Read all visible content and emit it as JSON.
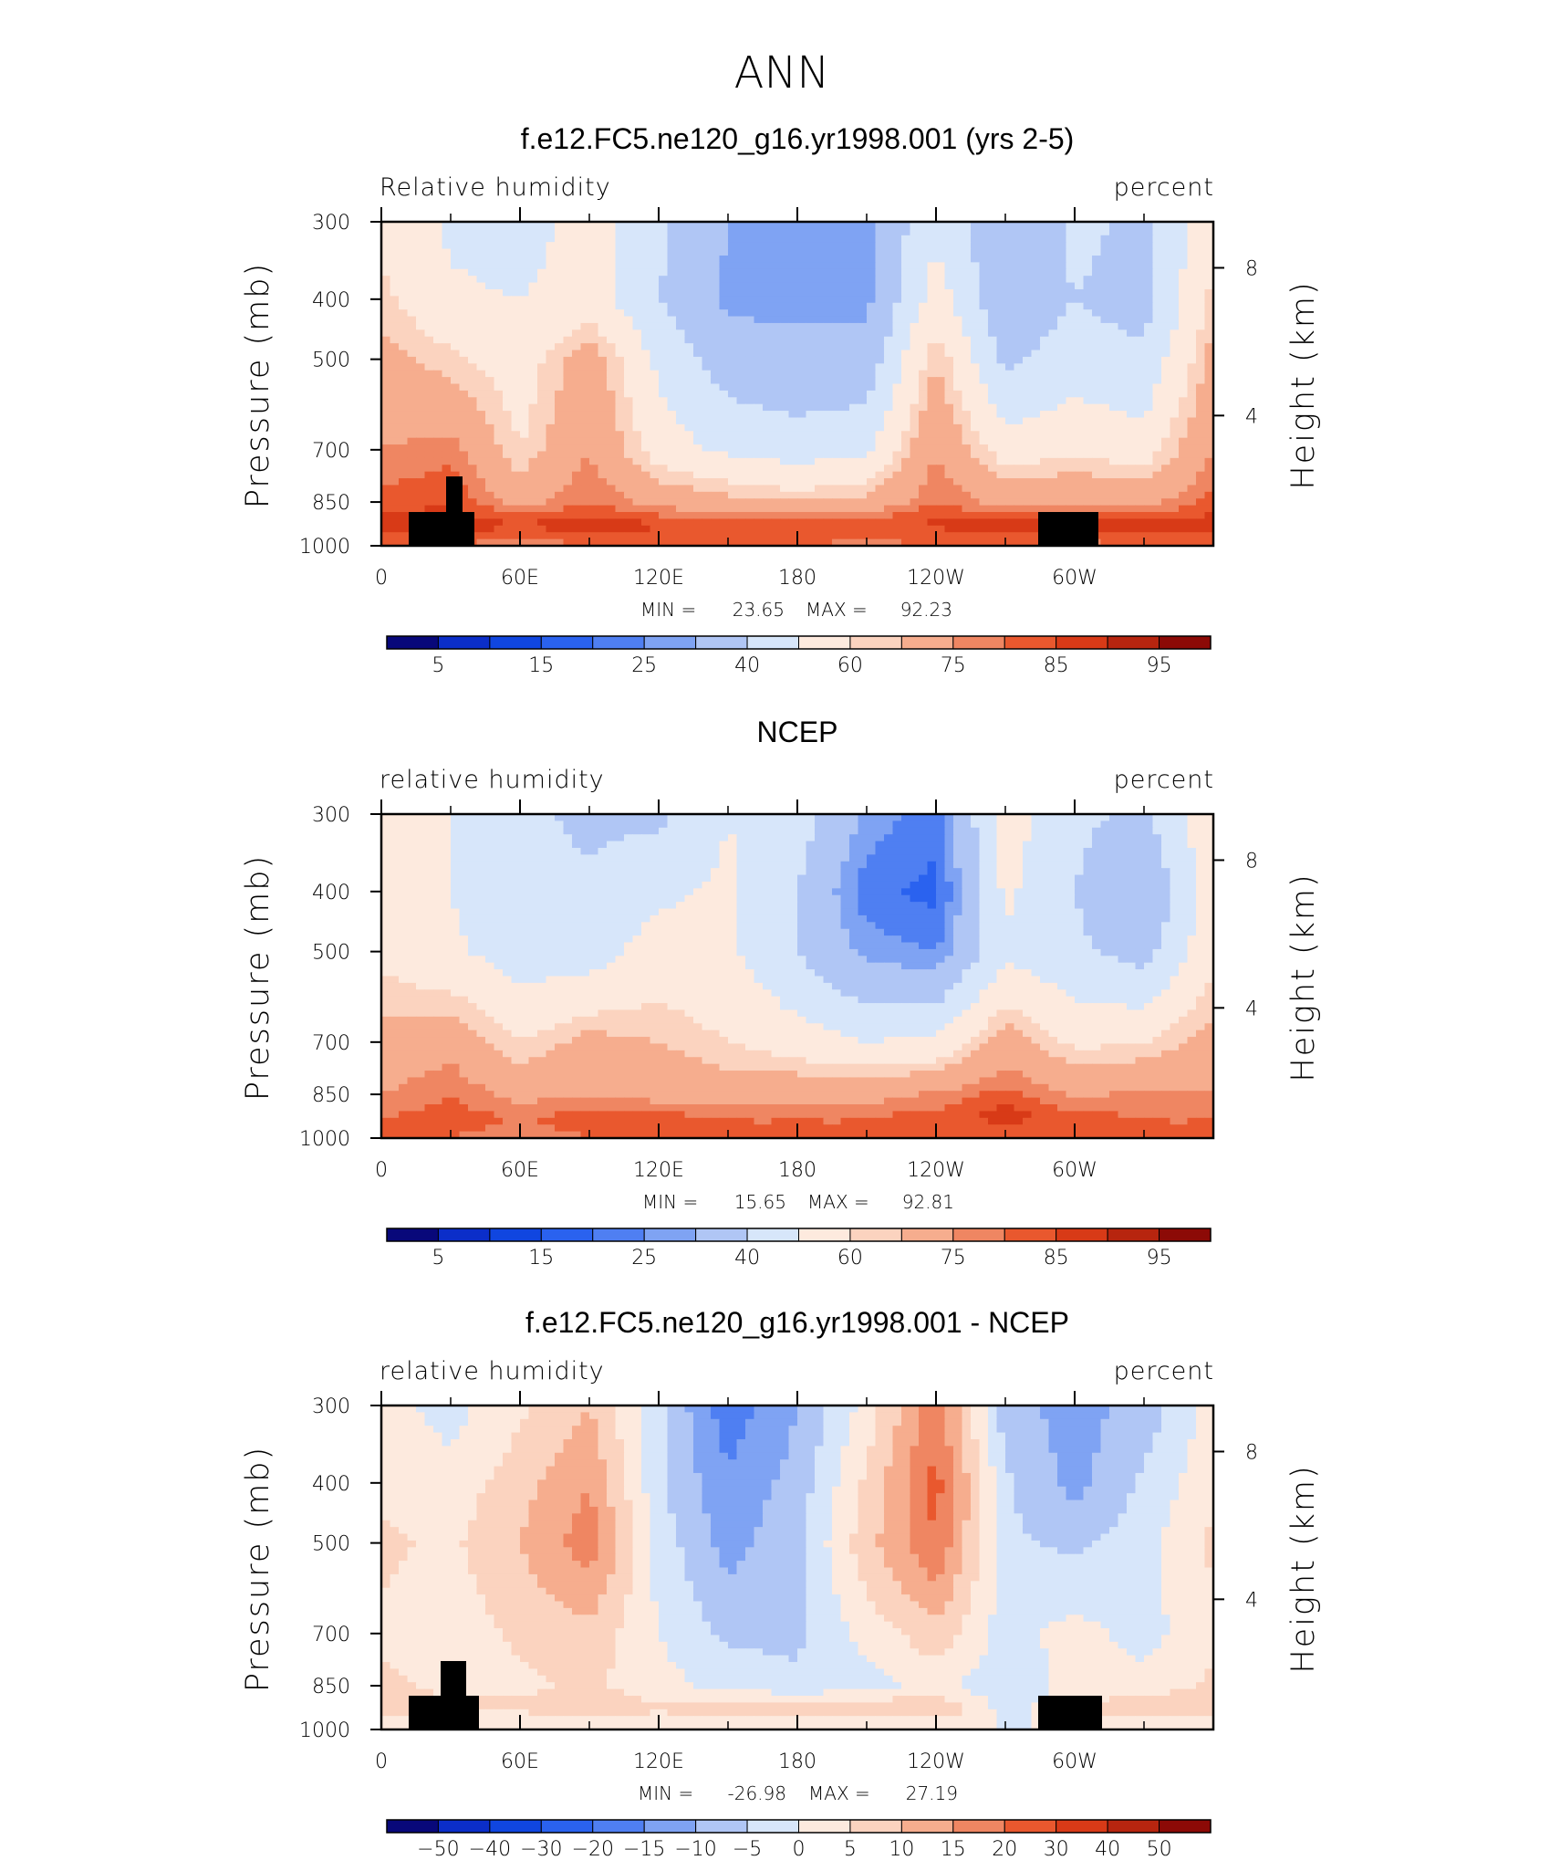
{
  "title": "ANN",
  "colors": {
    "abs_scale": [
      "#08087a",
      "#0b2ec9",
      "#1046e0",
      "#2a62ef",
      "#4f7ff2",
      "#7fa3f3",
      "#b0c6f5",
      "#d7e6fa",
      "#fdeade",
      "#fbd3bf",
      "#f6ad8e",
      "#ef8662",
      "#e9582e",
      "#d83a17",
      "#b7250f",
      "#8c0a06"
    ],
    "diff_scale": [
      "#08087a",
      "#0b2ec9",
      "#1046e0",
      "#2a62ef",
      "#4f7ff2",
      "#7fa3f3",
      "#b0c6f5",
      "#d7e6fa",
      "#fdeade",
      "#fbd3bf",
      "#f6ad8e",
      "#ef8662",
      "#e9582e",
      "#d83a17",
      "#b7250f",
      "#8c0a06"
    ],
    "land_mask": "#000000"
  },
  "chart_data": [
    {
      "type": "heatmap",
      "title": "f.e12.FC5.ne120_g16.yr1998.001 (yrs 2-5)",
      "left_label": "Relative humidity",
      "right_label": "percent",
      "ylabel": "Pressure (mb)",
      "y2label": "Height (km)",
      "yticks": [
        "300",
        "400",
        "500",
        "700",
        "850",
        "1000"
      ],
      "y2ticks": [
        "8",
        "4"
      ],
      "xticks": [
        "0",
        "60E",
        "120E",
        "180",
        "120W",
        "60W"
      ],
      "min_label": "MIN =",
      "min_value": "23.65",
      "max_label": "MAX =",
      "max_value": "92.23",
      "colorbar_labels": [
        "5",
        "15",
        "25",
        "40",
        "60",
        "75",
        "85",
        "95"
      ],
      "field": {
        "lon": [
          0,
          30,
          60,
          90,
          120,
          150,
          180,
          210,
          240,
          270,
          300,
          330,
          360
        ],
        "levels": [
          300,
          400,
          500,
          700,
          850,
          925,
          1000
        ],
        "values": [
          [
            58,
            48,
            45,
            55,
            42,
            30,
            30,
            28,
            48,
            30,
            42,
            38,
            58
          ],
          [
            62,
            52,
            50,
            55,
            40,
            28,
            28,
            28,
            55,
            32,
            40,
            36,
            62
          ],
          [
            68,
            62,
            55,
            70,
            48,
            35,
            33,
            33,
            65,
            38,
            45,
            42,
            68
          ],
          [
            75,
            78,
            60,
            75,
            55,
            48,
            45,
            48,
            75,
            55,
            58,
            55,
            75
          ],
          [
            82,
            85,
            72,
            80,
            72,
            68,
            65,
            68,
            80,
            72,
            75,
            72,
            82
          ],
          [
            88,
            88,
            86,
            88,
            86,
            85,
            86,
            85,
            86,
            88,
            86,
            88,
            88
          ],
          [
            80,
            80,
            76,
            80,
            80,
            80,
            80,
            78,
            80,
            80,
            78,
            80,
            80
          ]
        ]
      }
    },
    {
      "type": "heatmap",
      "title": "NCEP",
      "left_label": "relative humidity",
      "right_label": "percent",
      "ylabel": "Pressure (mb)",
      "y2label": "Height (km)",
      "yticks": [
        "300",
        "400",
        "500",
        "700",
        "850",
        "1000"
      ],
      "y2ticks": [
        "8",
        "4"
      ],
      "xticks": [
        "0",
        "60E",
        "120E",
        "180",
        "120W",
        "60W"
      ],
      "min_label": "MIN =",
      "min_value": "15.65",
      "max_label": "MAX =",
      "max_value": "92.81",
      "colorbar_labels": [
        "5",
        "15",
        "25",
        "40",
        "60",
        "75",
        "85",
        "95"
      ],
      "field": {
        "lon": [
          0,
          30,
          60,
          90,
          120,
          150,
          180,
          210,
          240,
          270,
          300,
          330,
          360
        ],
        "levels": [
          300,
          400,
          500,
          700,
          850,
          925,
          1000
        ],
        "values": [
          [
            58,
            50,
            42,
            38,
            38,
            50,
            45,
            28,
            22,
            55,
            42,
            38,
            58
          ],
          [
            55,
            50,
            42,
            42,
            48,
            52,
            40,
            22,
            18,
            52,
            40,
            30,
            55
          ],
          [
            58,
            52,
            45,
            45,
            55,
            52,
            40,
            28,
            25,
            48,
            42,
            36,
            58
          ],
          [
            68,
            72,
            60,
            68,
            65,
            60,
            55,
            50,
            52,
            70,
            58,
            60,
            68
          ],
          [
            75,
            80,
            72,
            75,
            72,
            70,
            72,
            72,
            76,
            82,
            74,
            76,
            75
          ],
          [
            80,
            82,
            80,
            82,
            82,
            80,
            80,
            80,
            82,
            88,
            82,
            80,
            80
          ],
          [
            80,
            80,
            78,
            80,
            80,
            80,
            80,
            80,
            80,
            80,
            80,
            80,
            80
          ]
        ]
      }
    },
    {
      "type": "heatmap",
      "title": "f.e12.FC5.ne120_g16.yr1998.001 - NCEP",
      "left_label": "relative humidity",
      "right_label": "percent",
      "ylabel": "Pressure (mb)",
      "y2label": "Height (km)",
      "yticks": [
        "300",
        "400",
        "500",
        "700",
        "850",
        "1000"
      ],
      "y2ticks": [
        "8",
        "4"
      ],
      "xticks": [
        "0",
        "60E",
        "120E",
        "180",
        "120W",
        "60W"
      ],
      "min_label": "MIN =",
      "min_value": "-26.98",
      "max_label": "MAX =",
      "max_value": "27.19",
      "colorbar_labels": [
        "-50",
        "-40",
        "-30",
        "-20",
        "-15",
        "-10",
        "-5",
        "0",
        "5",
        "10",
        "15",
        "20",
        "30",
        "40",
        "50"
      ],
      "field": {
        "lon": [
          0,
          30,
          60,
          90,
          120,
          150,
          180,
          210,
          240,
          270,
          300,
          330,
          360
        ],
        "levels": [
          300,
          400,
          500,
          700,
          850,
          925,
          1000
        ],
        "values": [
          [
            2,
            -2,
            4,
            10,
            -4,
            -18,
            -10,
            2,
            18,
            -8,
            -12,
            -8,
            2
          ],
          [
            4,
            2,
            8,
            15,
            -4,
            -14,
            -8,
            6,
            22,
            -4,
            -12,
            -4,
            4
          ],
          [
            6,
            4,
            10,
            18,
            -2,
            -12,
            -6,
            8,
            20,
            -4,
            -6,
            -2,
            6
          ],
          [
            4,
            2,
            6,
            8,
            0,
            -6,
            -6,
            2,
            8,
            -2,
            2,
            -2,
            4
          ],
          [
            6,
            4,
            4,
            6,
            2,
            -2,
            -4,
            -2,
            2,
            -4,
            2,
            2,
            6
          ],
          [
            8,
            6,
            6,
            8,
            6,
            8,
            8,
            8,
            10,
            -2,
            4,
            10,
            8
          ],
          [
            0,
            0,
            0,
            0,
            0,
            0,
            0,
            0,
            0,
            0,
            0,
            0,
            0
          ]
        ]
      }
    }
  ]
}
